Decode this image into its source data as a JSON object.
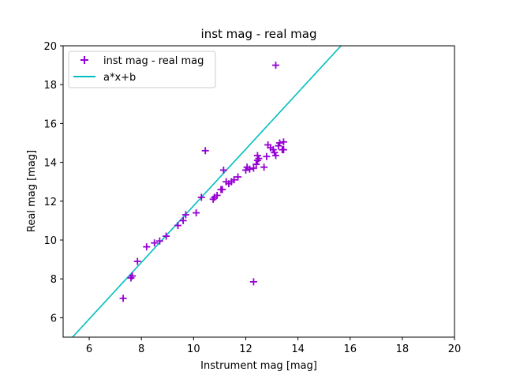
{
  "chart_data": {
    "type": "scatter",
    "title": "inst mag - real mag",
    "xlabel": "Instrument mag [mag]",
    "ylabel": "Real mag [mag]",
    "xlim": [
      5,
      20
    ],
    "ylim": [
      5,
      20
    ],
    "xticks": [
      6,
      8,
      10,
      12,
      14,
      16,
      18,
      20
    ],
    "yticks": [
      6,
      8,
      10,
      12,
      14,
      16,
      18,
      20
    ],
    "grid": false,
    "legend_position": "upper-left",
    "series": [
      {
        "name": "inst mag - real mag",
        "kind": "scatter",
        "marker": "+",
        "color": "#9400d3",
        "points": [
          [
            7.3,
            7.0
          ],
          [
            7.6,
            8.05
          ],
          [
            7.65,
            8.15
          ],
          [
            7.85,
            8.9
          ],
          [
            8.2,
            9.65
          ],
          [
            8.5,
            9.85
          ],
          [
            8.7,
            9.95
          ],
          [
            8.95,
            10.2
          ],
          [
            9.4,
            10.75
          ],
          [
            9.6,
            11.0
          ],
          [
            9.7,
            11.3
          ],
          [
            10.1,
            11.4
          ],
          [
            10.3,
            12.2
          ],
          [
            10.45,
            14.6
          ],
          [
            10.75,
            12.1
          ],
          [
            10.8,
            12.2
          ],
          [
            10.9,
            12.3
          ],
          [
            11.05,
            12.6
          ],
          [
            11.1,
            12.6
          ],
          [
            11.15,
            13.6
          ],
          [
            11.25,
            13.0
          ],
          [
            11.35,
            12.9
          ],
          [
            11.45,
            13.0
          ],
          [
            11.55,
            13.1
          ],
          [
            11.7,
            13.25
          ],
          [
            12.0,
            13.6
          ],
          [
            12.05,
            13.75
          ],
          [
            12.15,
            13.65
          ],
          [
            12.3,
            13.7
          ],
          [
            12.3,
            7.85
          ],
          [
            12.4,
            13.9
          ],
          [
            12.45,
            14.1
          ],
          [
            12.45,
            14.35
          ],
          [
            12.5,
            14.2
          ],
          [
            12.7,
            13.75
          ],
          [
            12.8,
            14.3
          ],
          [
            12.85,
            14.9
          ],
          [
            12.95,
            14.75
          ],
          [
            13.05,
            14.65
          ],
          [
            13.1,
            14.5
          ],
          [
            13.15,
            14.35
          ],
          [
            13.15,
            19.0
          ],
          [
            13.25,
            14.85
          ],
          [
            13.3,
            15.0
          ],
          [
            13.4,
            14.65
          ],
          [
            13.45,
            15.05
          ],
          [
            13.45,
            14.65
          ]
        ]
      },
      {
        "name": "a*x+b",
        "kind": "line",
        "color": "#00bfbf",
        "line": {
          "x0": 5.36,
          "y0": 5.0,
          "x1": 15.65,
          "y1": 20.0
        }
      }
    ]
  }
}
